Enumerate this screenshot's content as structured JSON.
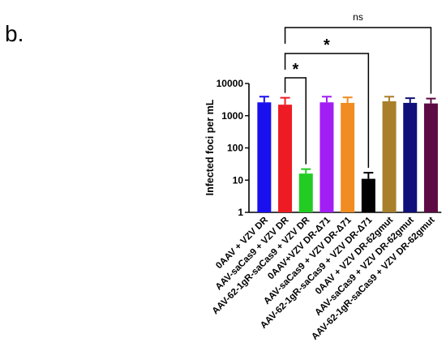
{
  "panel_label": "b.",
  "chart_data": {
    "type": "bar",
    "title": "",
    "xlabel": "",
    "ylabel": "Infected foci per mL",
    "yscale": "log",
    "ylim": [
      1,
      10000
    ],
    "yticks": [
      "1",
      "10",
      "100",
      "1000",
      "10000"
    ],
    "grid": false,
    "legend": "none",
    "categories": [
      "0AAV + VZV DR",
      "AAV-saCas9 + VZV DR",
      "AAV-62-1gR-saCas9 + VZV DR",
      "0AAV+VZV DR-Δ71",
      "AAV-saCas9 + VZV DR-Δ71",
      "AAV-62-1gR-saCas9 + VZV DR-Δ71",
      "0AAV + VZV DR-62gmut",
      "AAV-saCas9 + VZV DR-62gmut",
      "AAV-62-1gR-saCas9 + VZV DR-62gmut"
    ],
    "values": [
      2600,
      2200,
      16,
      2600,
      2500,
      11,
      2800,
      2500,
      2400
    ],
    "errors": [
      1300,
      1400,
      6,
      1300,
      1200,
      6,
      1100,
      1000,
      1000
    ],
    "colors": [
      "#1a10ee",
      "#ee1b24",
      "#22cc22",
      "#a21ef5",
      "#f08c22",
      "#000000",
      "#a97f2c",
      "#10107a",
      "#5e0b45"
    ],
    "comparisons": [
      {
        "from": 1,
        "to": 2,
        "label": "*"
      },
      {
        "from": 1,
        "to": 5,
        "label": "*"
      },
      {
        "from": 1,
        "to": 8,
        "label": "ns"
      }
    ]
  }
}
